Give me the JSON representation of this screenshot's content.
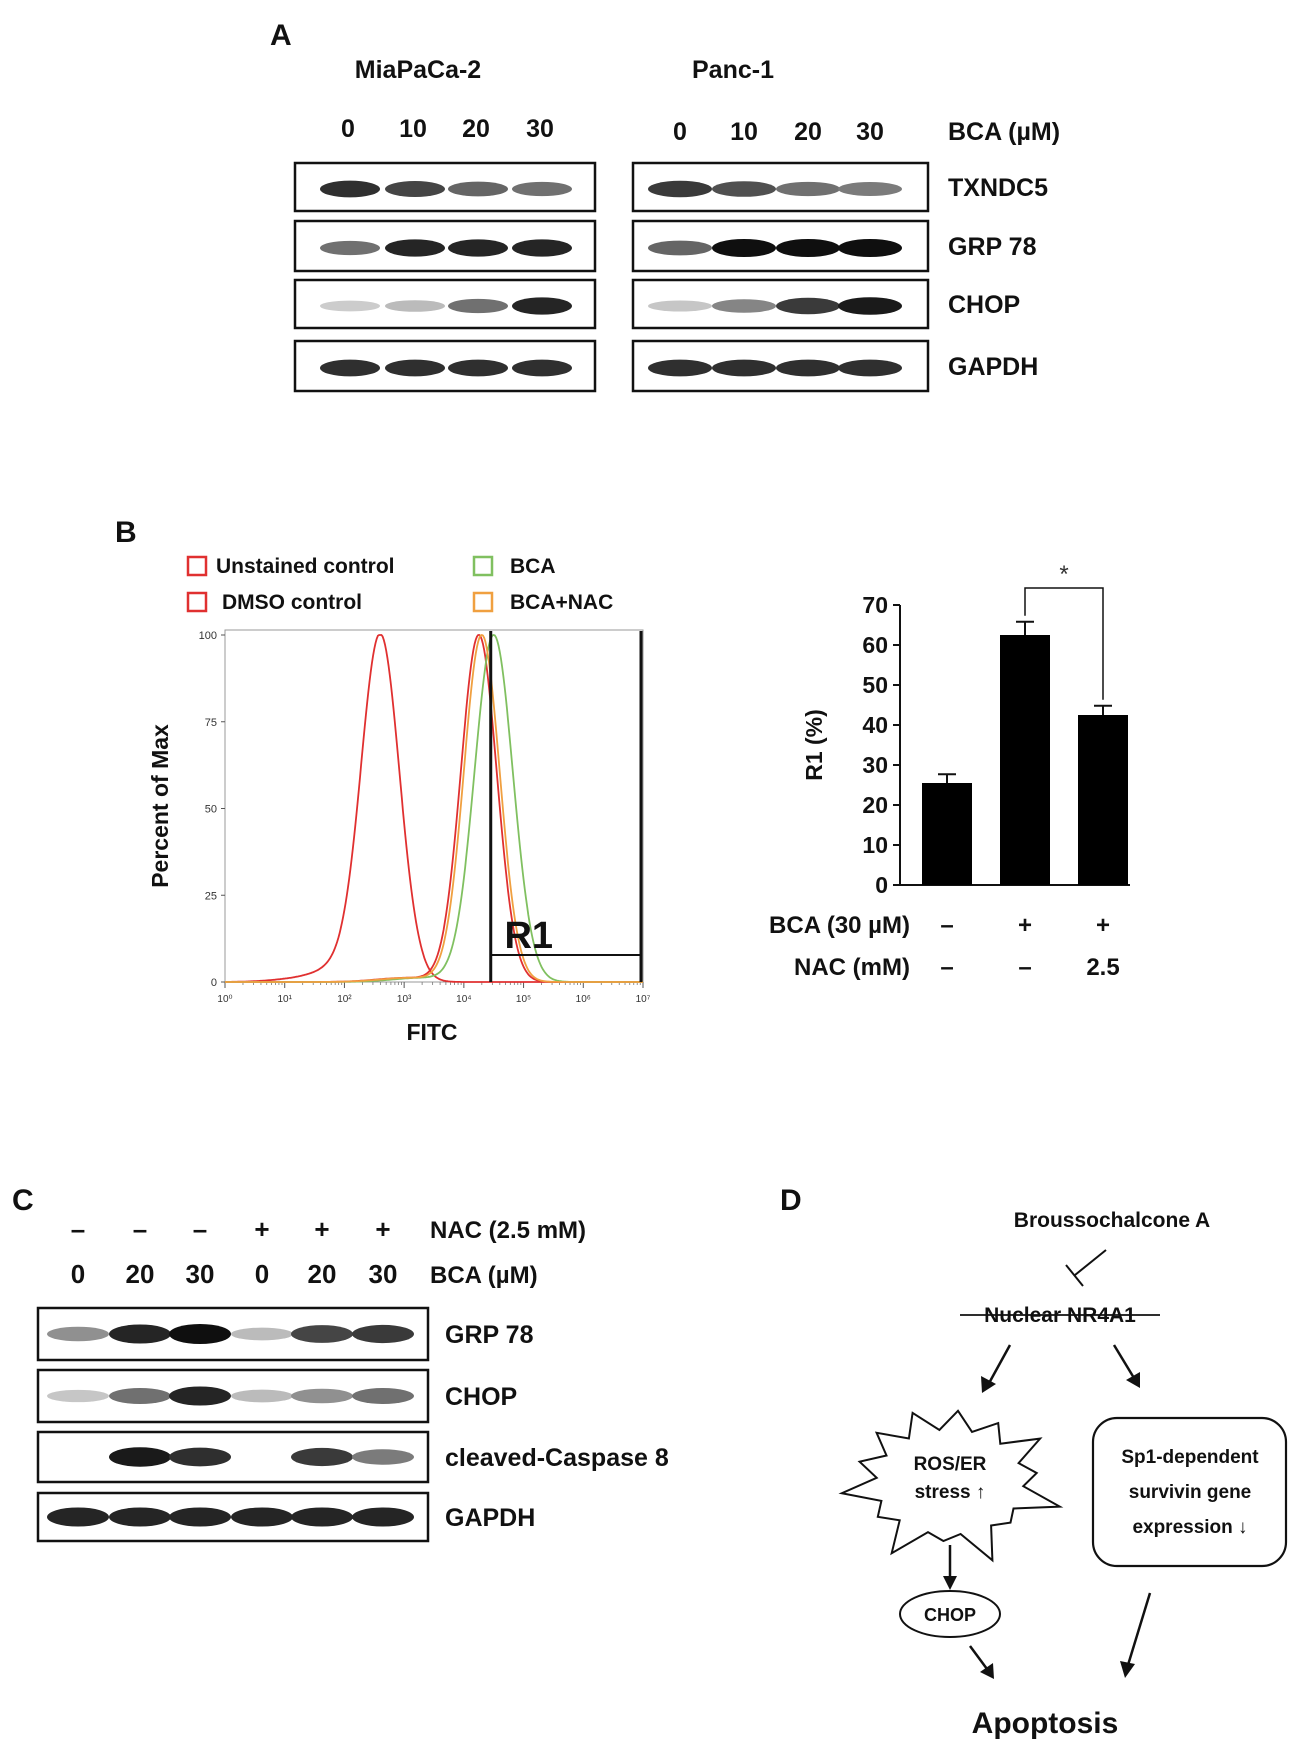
{
  "panel_a": {
    "label": "A",
    "left_line": "MiaPaCa-2",
    "right_line": "Panc-1",
    "doses": [
      "0",
      "10",
      "20",
      "30"
    ],
    "dose_label": "BCA (µM)",
    "proteins": [
      "TXNDC5",
      "GRP 78",
      "CHOP",
      "GAPDH"
    ],
    "band_intensity_left": [
      [
        0.85,
        0.75,
        0.6,
        0.55
      ],
      [
        0.55,
        0.9,
        0.9,
        0.9
      ],
      [
        0.12,
        0.2,
        0.55,
        0.9
      ],
      [
        0.85,
        0.85,
        0.85,
        0.85
      ]
    ],
    "band_intensity_right": [
      [
        0.8,
        0.7,
        0.55,
        0.5
      ],
      [
        0.6,
        1.0,
        1.0,
        1.0
      ],
      [
        0.15,
        0.45,
        0.8,
        0.95
      ],
      [
        0.85,
        0.85,
        0.85,
        0.85
      ]
    ]
  },
  "panel_b": {
    "label": "B",
    "legend": [
      {
        "text": "Unstained control",
        "color": "#e03030"
      },
      {
        "text": "DMSO control",
        "color": "#e03030"
      },
      {
        "text": "BCA",
        "color": "#80c060"
      },
      {
        "text": "BCA+NAC",
        "color": "#f0a040"
      }
    ],
    "histogram": {
      "type": "line",
      "ylabel": "Percent of Max",
      "xlabel": "FITC",
      "yticks": [
        "0",
        "25",
        "50",
        "75",
        "100"
      ],
      "xticks": [
        "10⁰",
        "10¹",
        "10²",
        "10³",
        "10⁴",
        "10⁵",
        "10⁶",
        "10⁷"
      ],
      "gate_label": "R1",
      "gate_range_log10": [
        4.45,
        7.0
      ],
      "ylim": [
        0,
        100
      ],
      "xlim_log10": [
        0,
        7
      ],
      "series": [
        {
          "color": "#e03030",
          "peak_log10": 2.6,
          "width": 0.32,
          "baseline_bump": true
        },
        {
          "color": "#e03030",
          "peak_log10": 4.25,
          "width": 0.3,
          "baseline_bump": false
        },
        {
          "color": "#80c060",
          "peak_log10": 4.5,
          "width": 0.32,
          "baseline_bump": false
        },
        {
          "color": "#f0a040",
          "peak_log10": 4.3,
          "width": 0.3,
          "baseline_bump": false
        }
      ]
    },
    "bar": {
      "type": "bar",
      "ylabel": "R1 (%)",
      "yticks": [
        "0",
        "10",
        "20",
        "30",
        "40",
        "50",
        "60",
        "70"
      ],
      "ylim": [
        0,
        70
      ],
      "values": [
        25.5,
        62.5,
        42.5
      ],
      "errors": [
        2.2,
        3.3,
        2.3
      ],
      "significance": "*",
      "treatments": [
        {
          "label": "BCA (30 µM)",
          "values": [
            "–",
            "+",
            "+"
          ]
        },
        {
          "label": "NAC (mM)",
          "values": [
            "–",
            "–",
            "2.5"
          ]
        }
      ]
    }
  },
  "panel_c": {
    "label": "C",
    "treatments": [
      {
        "label": "NAC (2.5 mM)",
        "values": [
          "–",
          "–",
          "–",
          "+",
          "+",
          "+"
        ]
      },
      {
        "label": "BCA (µM)",
        "values": [
          "0",
          "20",
          "30",
          "0",
          "20",
          "30"
        ]
      }
    ],
    "proteins": [
      "GRP 78",
      "CHOP",
      "cleaved-Caspase 8",
      "GAPDH"
    ],
    "band_intensity": [
      [
        0.4,
        0.9,
        1.0,
        0.2,
        0.75,
        0.8
      ],
      [
        0.15,
        0.55,
        0.9,
        0.2,
        0.4,
        0.55
      ],
      [
        0.0,
        0.95,
        0.85,
        0.0,
        0.8,
        0.5
      ],
      [
        0.9,
        0.9,
        0.9,
        0.9,
        0.9,
        0.9
      ]
    ]
  },
  "panel_d": {
    "label": "D",
    "top": "Broussochalcone A",
    "nuclear": "Nuclear NR4A1",
    "ros_line1": "ROS/ER",
    "ros_line2": "stress ↑",
    "sp1_line1": "Sp1-dependent",
    "sp1_line2": "survivin gene",
    "sp1_line3": "expression ↓",
    "chop": "CHOP",
    "apoptosis": "Apoptosis"
  }
}
